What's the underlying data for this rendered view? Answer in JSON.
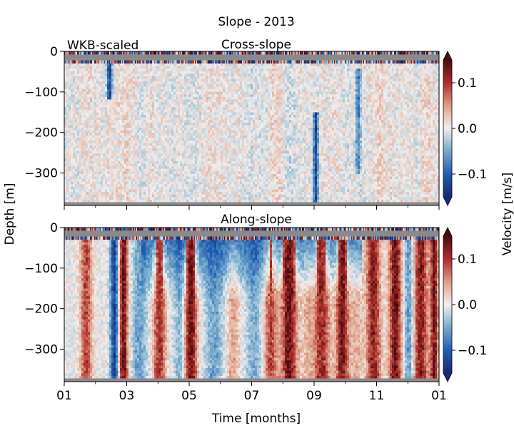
{
  "figure": {
    "suptitle": "Slope - 2013",
    "ylabel": "Depth [m]",
    "xlabel": "Time [months]",
    "colorbar_label": "Velocity [m/s]"
  },
  "chart_data": [
    {
      "type": "heatmap",
      "title": "Cross-slope",
      "annotation": "WKB-scaled",
      "xlabel": "Time [months]",
      "ylabel": "Depth [m]",
      "x_ticks": [
        "01",
        "03",
        "05",
        "07",
        "09",
        "11",
        "01"
      ],
      "x_tick_months": [
        0,
        2,
        4,
        6,
        8,
        10,
        12
      ],
      "xlim_months": [
        0,
        12
      ],
      "y_ticks": [
        0,
        -100,
        -200,
        -300
      ],
      "ylim": [
        -380,
        0
      ],
      "colorbar": {
        "label": "Velocity [m/s]",
        "ticks": [
          0.1,
          0.0,
          -0.1
        ],
        "ticks_text": [
          "0.1",
          "0.0",
          "−0.1"
        ],
        "vmin": -0.15,
        "vmax": 0.15,
        "extend": "both"
      },
      "features": [
        {
          "time_month": 1.45,
          "depth_top": -30,
          "depth_bottom": -120,
          "velocity": -0.14
        },
        {
          "time_month": 8.05,
          "depth_top": -150,
          "depth_bottom": -380,
          "velocity": -0.12
        },
        {
          "time_month": 9.4,
          "depth_top": -40,
          "depth_bottom": -300,
          "velocity": -0.08
        }
      ]
    },
    {
      "type": "heatmap",
      "title": "Along-slope",
      "xlabel": "Time [months]",
      "ylabel": "Depth [m]",
      "x_ticks": [
        "01",
        "03",
        "05",
        "07",
        "09",
        "11",
        "01"
      ],
      "x_tick_months": [
        0,
        2,
        4,
        6,
        8,
        10,
        12
      ],
      "xlim_months": [
        0,
        12
      ],
      "y_ticks": [
        0,
        -100,
        -200,
        -300
      ],
      "ylim": [
        -380,
        0
      ],
      "colorbar": {
        "label": "Velocity [m/s]",
        "ticks": [
          0.1,
          0.0,
          -0.1
        ],
        "ticks_text": [
          "0.1",
          "0.0",
          "−0.1"
        ],
        "vmin": -0.15,
        "vmax": 0.15,
        "extend": "both"
      },
      "bands": [
        {
          "center_month": 0.7,
          "half_width": 0.18,
          "velocity": 0.1
        },
        {
          "center_month": 1.6,
          "half_width": 0.12,
          "velocity": -0.14
        },
        {
          "center_month": 1.9,
          "half_width": 0.14,
          "velocity": 0.15
        },
        {
          "center_month": 2.4,
          "half_width": 0.25,
          "velocity": -0.06
        },
        {
          "center_month": 3.05,
          "half_width": 0.2,
          "velocity": 0.11
        },
        {
          "center_month": 3.7,
          "half_width": 0.2,
          "velocity": -0.05
        },
        {
          "center_month": 4.05,
          "half_width": 0.2,
          "velocity": 0.15
        },
        {
          "center_month": 4.8,
          "half_width": 0.3,
          "velocity": -0.06
        },
        {
          "center_month": 5.4,
          "half_width": 0.2,
          "velocity": 0.05
        },
        {
          "center_month": 6.1,
          "half_width": 0.3,
          "velocity": -0.05
        },
        {
          "center_month": 6.6,
          "half_width": 0.22,
          "velocity": 0.1
        },
        {
          "center_month": 7.2,
          "half_width": 0.25,
          "velocity": 0.15
        },
        {
          "center_month": 7.8,
          "half_width": 0.2,
          "velocity": 0.04
        },
        {
          "center_month": 8.25,
          "half_width": 0.25,
          "velocity": 0.12
        },
        {
          "center_month": 8.9,
          "half_width": 0.2,
          "velocity": 0.14
        },
        {
          "center_month": 9.35,
          "half_width": 0.22,
          "velocity": 0.04
        },
        {
          "center_month": 9.9,
          "half_width": 0.22,
          "velocity": 0.13
        },
        {
          "center_month": 10.6,
          "half_width": 0.2,
          "velocity": 0.15
        },
        {
          "center_month": 11.05,
          "half_width": 0.18,
          "velocity": -0.08
        },
        {
          "center_month": 11.4,
          "half_width": 0.25,
          "velocity": 0.13
        },
        {
          "center_month": 11.85,
          "half_width": 0.12,
          "velocity": 0.14
        }
      ],
      "near_surface_current": {
        "depth_top": -30,
        "depth_bottom": -180,
        "velocity": -0.12,
        "months": [
          2.5,
          9.5
        ]
      }
    }
  ]
}
